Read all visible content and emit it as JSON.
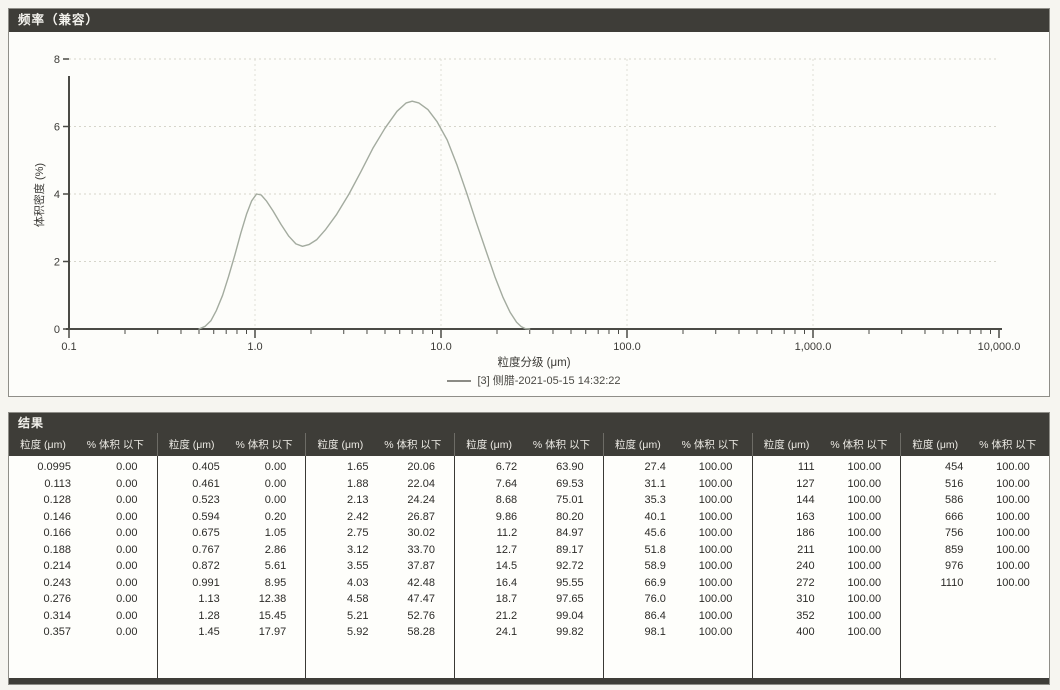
{
  "chart_panel": {
    "title": "频率（兼容）"
  },
  "chart_data": {
    "type": "line",
    "title": "频率（兼容）",
    "xlabel": "粒度分级 (μm)",
    "ylabel": "体积密度 (%)",
    "x_scale": "log",
    "xlim": [
      0.1,
      10000
    ],
    "ylim": [
      0,
      8
    ],
    "x_ticks": [
      "0.1",
      "1.0",
      "10.0",
      "100.0",
      "1,000.0",
      "10,000.0"
    ],
    "y_ticks": [
      "0",
      "2",
      "4",
      "6",
      "8"
    ],
    "grid": "dotted",
    "legend_position": "bottom",
    "series": [
      {
        "name": "[3] 侧腊-2021-05-15 14:32:22",
        "color": "#a3ab9f",
        "points": [
          [
            0.5,
            0
          ],
          [
            0.54,
            0.08
          ],
          [
            0.58,
            0.25
          ],
          [
            0.62,
            0.55
          ],
          [
            0.67,
            1.0
          ],
          [
            0.72,
            1.55
          ],
          [
            0.78,
            2.2
          ],
          [
            0.84,
            2.85
          ],
          [
            0.9,
            3.4
          ],
          [
            0.96,
            3.8
          ],
          [
            1.02,
            4.0
          ],
          [
            1.08,
            3.97
          ],
          [
            1.15,
            3.8
          ],
          [
            1.25,
            3.5
          ],
          [
            1.38,
            3.1
          ],
          [
            1.52,
            2.75
          ],
          [
            1.66,
            2.52
          ],
          [
            1.8,
            2.45
          ],
          [
            1.95,
            2.5
          ],
          [
            2.15,
            2.65
          ],
          [
            2.4,
            2.95
          ],
          [
            2.75,
            3.4
          ],
          [
            3.2,
            4.0
          ],
          [
            3.7,
            4.65
          ],
          [
            4.3,
            5.35
          ],
          [
            5.0,
            5.95
          ],
          [
            5.8,
            6.45
          ],
          [
            6.5,
            6.7
          ],
          [
            7.0,
            6.75
          ],
          [
            7.6,
            6.7
          ],
          [
            8.5,
            6.5
          ],
          [
            9.5,
            6.15
          ],
          [
            10.8,
            5.6
          ],
          [
            12.2,
            4.85
          ],
          [
            13.8,
            4.0
          ],
          [
            15.5,
            3.15
          ],
          [
            17.5,
            2.3
          ],
          [
            19.5,
            1.55
          ],
          [
            21.5,
            0.95
          ],
          [
            23.5,
            0.5
          ],
          [
            25.5,
            0.2
          ],
          [
            27,
            0.07
          ],
          [
            28.5,
            0.01
          ],
          [
            30,
            0
          ]
        ]
      }
    ]
  },
  "results": {
    "title": "结果",
    "col_headers": {
      "size": "粒度 (μm)",
      "pct": "% 体积 以下"
    },
    "groups": [
      {
        "rows": [
          [
            "0.0995",
            "0.00"
          ],
          [
            "0.113",
            "0.00"
          ],
          [
            "0.128",
            "0.00"
          ],
          [
            "0.146",
            "0.00"
          ],
          [
            "0.166",
            "0.00"
          ],
          [
            "0.188",
            "0.00"
          ],
          [
            "0.214",
            "0.00"
          ],
          [
            "0.243",
            "0.00"
          ],
          [
            "0.276",
            "0.00"
          ],
          [
            "0.314",
            "0.00"
          ],
          [
            "0.357",
            "0.00"
          ]
        ]
      },
      {
        "rows": [
          [
            "0.405",
            "0.00"
          ],
          [
            "0.461",
            "0.00"
          ],
          [
            "0.523",
            "0.00"
          ],
          [
            "0.594",
            "0.20"
          ],
          [
            "0.675",
            "1.05"
          ],
          [
            "0.767",
            "2.86"
          ],
          [
            "0.872",
            "5.61"
          ],
          [
            "0.991",
            "8.95"
          ],
          [
            "1.13",
            "12.38"
          ],
          [
            "1.28",
            "15.45"
          ],
          [
            "1.45",
            "17.97"
          ]
        ]
      },
      {
        "rows": [
          [
            "1.65",
            "20.06"
          ],
          [
            "1.88",
            "22.04"
          ],
          [
            "2.13",
            "24.24"
          ],
          [
            "2.42",
            "26.87"
          ],
          [
            "2.75",
            "30.02"
          ],
          [
            "3.12",
            "33.70"
          ],
          [
            "3.55",
            "37.87"
          ],
          [
            "4.03",
            "42.48"
          ],
          [
            "4.58",
            "47.47"
          ],
          [
            "5.21",
            "52.76"
          ],
          [
            "5.92",
            "58.28"
          ]
        ]
      },
      {
        "rows": [
          [
            "6.72",
            "63.90"
          ],
          [
            "7.64",
            "69.53"
          ],
          [
            "8.68",
            "75.01"
          ],
          [
            "9.86",
            "80.20"
          ],
          [
            "11.2",
            "84.97"
          ],
          [
            "12.7",
            "89.17"
          ],
          [
            "14.5",
            "92.72"
          ],
          [
            "16.4",
            "95.55"
          ],
          [
            "18.7",
            "97.65"
          ],
          [
            "21.2",
            "99.04"
          ],
          [
            "24.1",
            "99.82"
          ]
        ]
      },
      {
        "rows": [
          [
            "27.4",
            "100.00"
          ],
          [
            "31.1",
            "100.00"
          ],
          [
            "35.3",
            "100.00"
          ],
          [
            "40.1",
            "100.00"
          ],
          [
            "45.6",
            "100.00"
          ],
          [
            "51.8",
            "100.00"
          ],
          [
            "58.9",
            "100.00"
          ],
          [
            "66.9",
            "100.00"
          ],
          [
            "76.0",
            "100.00"
          ],
          [
            "86.4",
            "100.00"
          ],
          [
            "98.1",
            "100.00"
          ]
        ]
      },
      {
        "rows": [
          [
            "111",
            "100.00"
          ],
          [
            "127",
            "100.00"
          ],
          [
            "144",
            "100.00"
          ],
          [
            "163",
            "100.00"
          ],
          [
            "186",
            "100.00"
          ],
          [
            "211",
            "100.00"
          ],
          [
            "240",
            "100.00"
          ],
          [
            "272",
            "100.00"
          ],
          [
            "310",
            "100.00"
          ],
          [
            "352",
            "100.00"
          ],
          [
            "400",
            "100.00"
          ]
        ]
      },
      {
        "rows": [
          [
            "454",
            "100.00"
          ],
          [
            "516",
            "100.00"
          ],
          [
            "586",
            "100.00"
          ],
          [
            "666",
            "100.00"
          ],
          [
            "756",
            "100.00"
          ],
          [
            "859",
            "100.00"
          ],
          [
            "976",
            "100.00"
          ],
          [
            "1110",
            "100.00"
          ]
        ]
      }
    ]
  }
}
